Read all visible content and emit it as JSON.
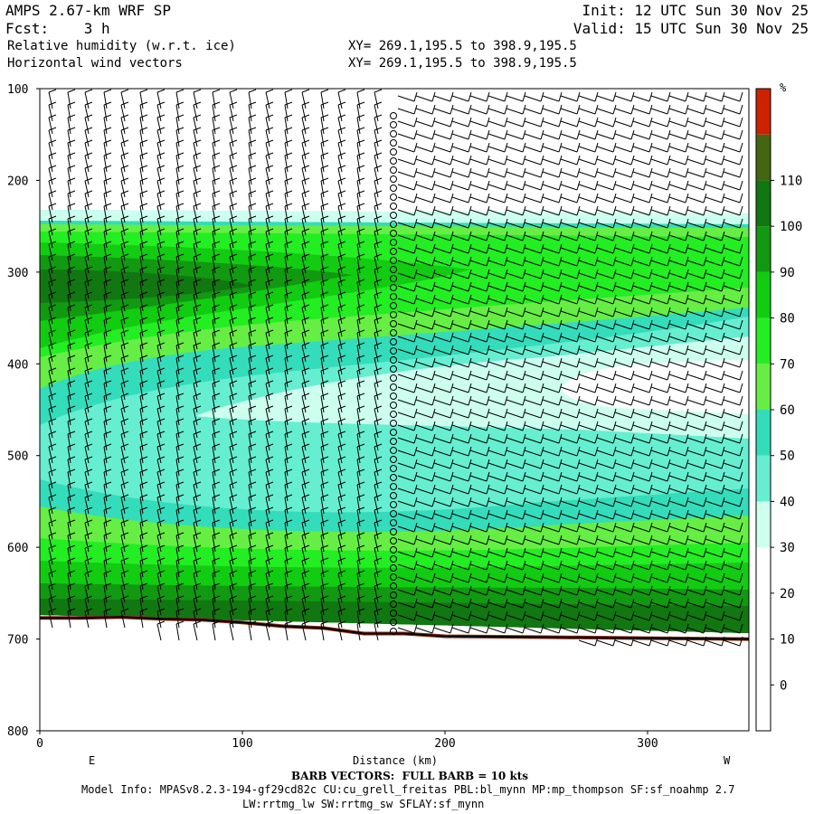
{
  "header": {
    "model": "AMPS 2.67-km WRF SP",
    "fcst": "Fcst:    3 h",
    "field1": "Relative humidity (w.r.t. ice)",
    "field2": "Horizontal wind vectors",
    "xy1": "XY= 269.1,195.5 to 398.9,195.5",
    "xy2": "XY= 269.1,195.5 to 398.9,195.5",
    "init": "Init: 12 UTC Sun 30 Nov 25",
    "valid": "Valid: 15 UTC Sun 30 Nov 25"
  },
  "footer": {
    "barb_note": "BARB VECTORS:  FULL BARB = 10 kts",
    "model_info": "Model Info: MPASv8.2.3-194-gf29cd82c CU:cu_grell_freitas PBL:bl_mynn MP:mp_thompson SF:sf_noahmp 2.7",
    "model_info2": "LW:rrtmg_lw SW:rrtmg_sw SFLAY:sf_mynn"
  },
  "chart_data": {
    "type": "heatmap",
    "title": "Relative humidity (w.r.t. ice)",
    "xlabel": "Distance (km)",
    "ylabel": "",
    "xlim": [
      0,
      350
    ],
    "ylim": [
      800,
      100
    ],
    "x_ticks": [
      0,
      100,
      200,
      300
    ],
    "y_ticks": [
      100,
      200,
      300,
      400,
      500,
      600,
      700,
      800
    ],
    "direction_labels": {
      "left": "E",
      "right": "W"
    },
    "colorbar": {
      "unit": "%",
      "levels": [
        0,
        10,
        20,
        30,
        40,
        50,
        60,
        70,
        80,
        90,
        100,
        110
      ],
      "colors": [
        "#ffffff",
        "#ffffff",
        "#ffffff",
        "#ffffff",
        "#ccffee",
        "#66eed0",
        "#33ddbb",
        "#66ee44",
        "#22ee22",
        "#11cc11",
        "#119911",
        "#117711",
        "#446611",
        "#cc2200"
      ]
    },
    "terrain_pressure": [
      {
        "x": 0,
        "p": 677
      },
      {
        "x": 20,
        "p": 677
      },
      {
        "x": 40,
        "p": 676
      },
      {
        "x": 60,
        "p": 678
      },
      {
        "x": 80,
        "p": 679
      },
      {
        "x": 100,
        "p": 682
      },
      {
        "x": 120,
        "p": 686
      },
      {
        "x": 140,
        "p": 688
      },
      {
        "x": 160,
        "p": 694
      },
      {
        "x": 180,
        "p": 694
      },
      {
        "x": 200,
        "p": 697
      },
      {
        "x": 250,
        "p": 698
      },
      {
        "x": 300,
        "p": 699
      },
      {
        "x": 350,
        "p": 700
      }
    ]
  }
}
